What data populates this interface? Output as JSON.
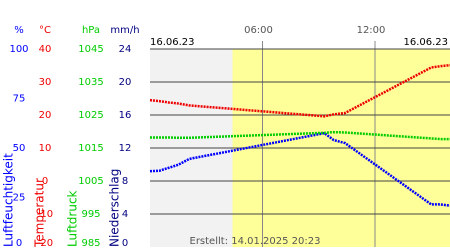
{
  "chart_data": {
    "type": "line",
    "dates": [
      "16.06.23",
      "16.06.23"
    ],
    "footer": "Erstellt: 14.01.2025 20:23",
    "xlim": [
      0,
      16
    ],
    "xticks": [
      {
        "value": 6,
        "label": "06:00"
      },
      {
        "value": 12,
        "label": "12:00"
      }
    ],
    "night": [
      0,
      4.4
    ],
    "night_color": "#f2f2f2",
    "day_color": "#ffff99",
    "grid": true,
    "axes": [
      {
        "unit": "%",
        "label": "Luftfeuchtigkeit",
        "color": "#0000ff",
        "ylim": [
          0,
          100
        ],
        "yticks": [
          0,
          25,
          50,
          75,
          100
        ]
      },
      {
        "unit": "°C",
        "label": "Temperatur",
        "color": "#ee0000",
        "ylim": [
          -20,
          40
        ],
        "yticks": [
          -20,
          -10,
          0,
          10,
          20,
          30,
          40
        ]
      },
      {
        "unit": "hPa",
        "label": "Luftdruck",
        "color": "#00cc00",
        "ylim": [
          985,
          1045
        ],
        "yticks": [
          985,
          995,
          1005,
          1015,
          1025,
          1035,
          1045
        ]
      },
      {
        "unit": "mm/h",
        "label": "Niederschlag",
        "color": "#000080",
        "ylim": [
          0,
          24
        ],
        "yticks": [
          0,
          4,
          8,
          12,
          16,
          20,
          24
        ]
      }
    ],
    "x": [
      0,
      0.5,
      1,
      1.5,
      2.1,
      9.3,
      9.8,
      10.4,
      15,
      15.5,
      16
    ],
    "series": [
      {
        "axis": 0,
        "color": "#0000ff",
        "values": [
          38.3,
          38.5,
          40.0,
          41.5,
          44.5,
          57.5,
          54.0,
          52.5,
          21.5,
          21.5,
          20.9
        ]
      },
      {
        "axis": 1,
        "color": "#ee0000",
        "values": [
          24.5,
          24.2,
          23.8,
          23.5,
          22.9,
          19.6,
          20.2,
          20.6,
          34.4,
          34.8,
          35.1
        ]
      },
      {
        "axis": 2,
        "color": "#00cc00",
        "values": [
          1018.2,
          1018.2,
          1018.2,
          1018.1,
          1018.1,
          1019.6,
          1019.8,
          1019.7,
          1017.9,
          1017.7,
          1017.7
        ]
      }
    ]
  }
}
